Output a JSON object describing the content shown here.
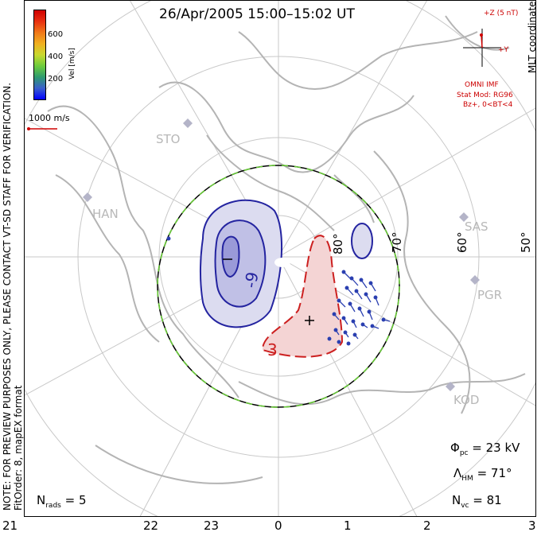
{
  "title": "26/Apr/2005 15:00–15:02 UT",
  "coordinates": "MLT coordinates",
  "note_line1": "NOTE: FOR PREVIEW PURPOSES ONLY, PLEASE CONTACT VT-SD STAFF FOR VERIFICATION.",
  "note_line2": "FitOrder: 8, mapEX format",
  "colorbar": {
    "label": "Vel [m/s]",
    "ticks": [
      "600",
      "400",
      "200"
    ],
    "colors": [
      "#0000ff",
      "#3a5fcd",
      "#2e9b6f",
      "#6dcc3c",
      "#c8d92e",
      "#f0b020",
      "#f07818",
      "#e83010",
      "#d00000"
    ]
  },
  "vector_scale": "1000 m/s",
  "imf": {
    "bz_label": "+Z (5 nT)",
    "by_label": "+Y",
    "source": "OMNI IMF",
    "model": "Stat Mod: RG96",
    "condition": "Bz+, 0<BT<4"
  },
  "stations": [
    "STO",
    "HAN",
    "SAS",
    "PGR",
    "KOD"
  ],
  "latitude_labels": [
    "80°",
    "70°",
    "60°",
    "50°"
  ],
  "contour_labels": [
    "-9",
    "3"
  ],
  "stats": {
    "phi_sym": "Φ",
    "phi_sub": "pc",
    "phi_val": "= 23 kV",
    "lambda_sym": "Λ",
    "lambda_sub": "HM",
    "lambda_val": "= 71°",
    "nvc_sym": "N",
    "nvc_sub": "vc",
    "nvc_val": "= 81",
    "nrads_sym": "N",
    "nrads_sub": "rads",
    "nrads_val": "= 5"
  },
  "mlt_axis": [
    "21",
    "22",
    "23",
    "0",
    "1",
    "2",
    "3"
  ]
}
